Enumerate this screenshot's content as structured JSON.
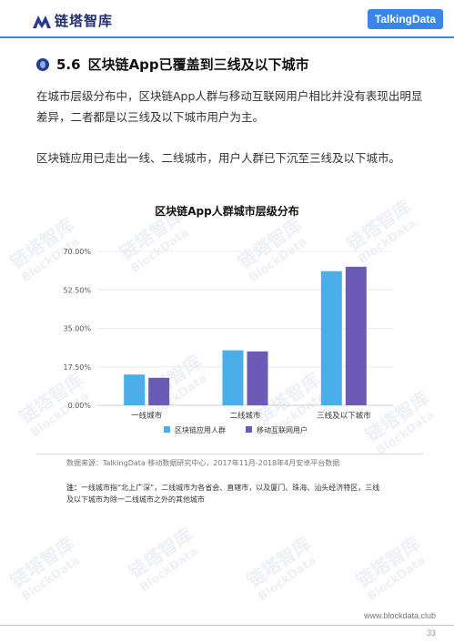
{
  "header": {
    "logo_text": "链塔智库",
    "brand": "TalkingData"
  },
  "section": {
    "number": "5.6",
    "title": "区块链App已覆盖到三线及以下城市"
  },
  "paragraphs": [
    "在城市层级分布中，区块链App人群与移动互联网用户相比并没有表现出明显差异，二者都是以三线及以下城市用户为主。",
    "区块链应用已走出一线、二线城市，用户人群已下沉至三线及以下城市。"
  ],
  "colors": {
    "series1": "#4aaee9",
    "series2": "#6b5bb6",
    "accent": "#3a86e8"
  },
  "chart_data": {
    "type": "bar",
    "title": "区块链App人群城市层级分布",
    "categories": [
      "一线城市",
      "二线城市",
      "三线及以下城市"
    ],
    "series": [
      {
        "name": "区块链应用人群",
        "values": [
          0.14,
          0.25,
          0.61
        ]
      },
      {
        "name": "移动互联网用户",
        "values": [
          0.125,
          0.245,
          0.63
        ]
      }
    ],
    "yticks": [
      "70.00%",
      "52.50%",
      "35.00%",
      "17.50%",
      "0.00%"
    ],
    "ylim": [
      0,
      0.7
    ],
    "xlabel": "",
    "ylabel": "",
    "grid": true,
    "legend_position": "bottom"
  },
  "source": "数据来源：TalkingData 移动数据研究中心，2017年11月-2018年4月安卓平台数据",
  "note": {
    "label": "注：",
    "text": "一线城市指“北上广深”，二线城市为各省会、直辖市，以及厦门、珠海、汕头经济特区，三线及以下城市为除一二线城市之外的其他城市"
  },
  "footer": {
    "url": "www.blockdata.club",
    "page": "33"
  },
  "watermark": {
    "text": "链塔智库",
    "sub": "BlockData"
  }
}
